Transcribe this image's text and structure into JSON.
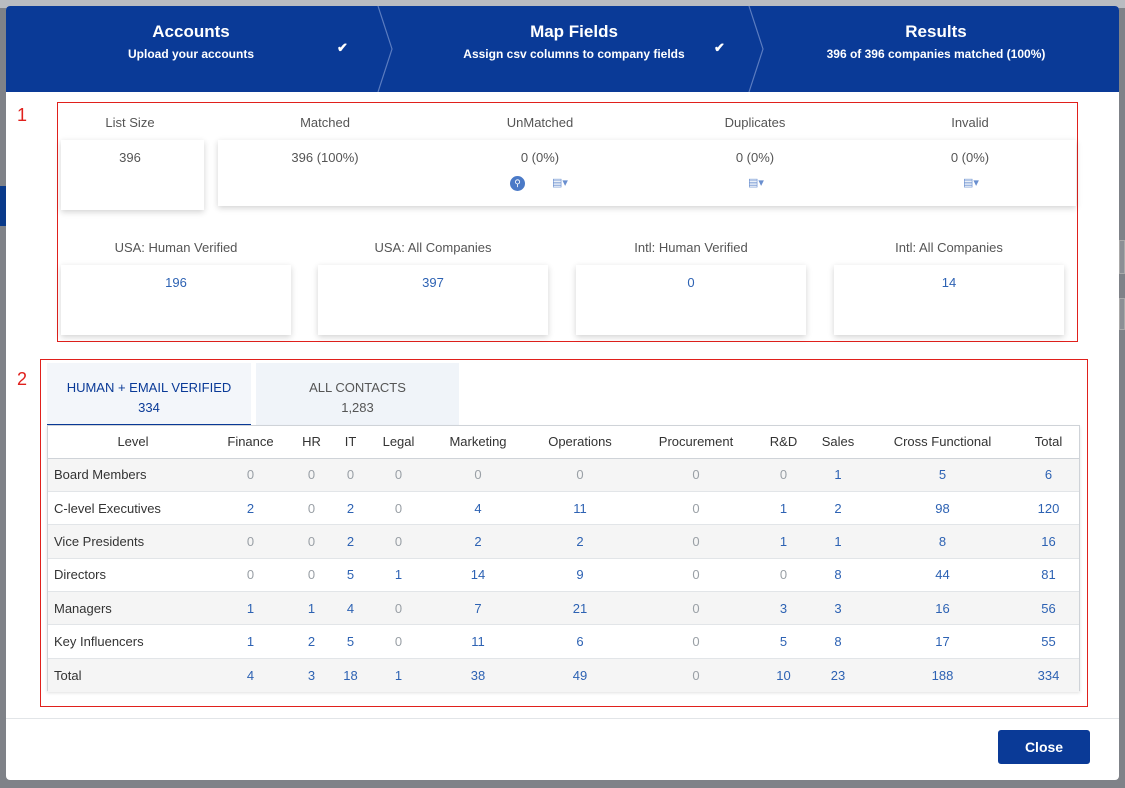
{
  "wizard": {
    "steps": [
      {
        "title": "Accounts",
        "subtitle": "Upload your accounts",
        "done": true
      },
      {
        "title": "Map Fields",
        "subtitle": "Assign csv columns to company fields",
        "done": true
      },
      {
        "title": "Results",
        "subtitle": "396 of 396 companies matched (100%)",
        "done": false
      }
    ],
    "check_icon": "checkmark-icon",
    "colors": {
      "header_bg": "#0a3a97",
      "accent": "#2d62b3",
      "annotation": "#e0201c"
    }
  },
  "section1": {
    "number": "1",
    "summary": [
      {
        "label": "List Size",
        "value": "396"
      },
      {
        "label": "Matched",
        "value": "396 (100%)"
      },
      {
        "label": "UnMatched",
        "value": "0 (0%)"
      },
      {
        "label": "Duplicates",
        "value": "0 (0%)"
      },
      {
        "label": "Invalid",
        "value": "0 (0%)"
      }
    ],
    "counts": [
      {
        "label": "USA: Human Verified",
        "value": "196"
      },
      {
        "label": "USA: All Companies",
        "value": "397"
      },
      {
        "label": "Intl: Human Verified",
        "value": "0"
      },
      {
        "label": "Intl: All Companies",
        "value": "14"
      }
    ]
  },
  "section2": {
    "number": "2",
    "tabs": [
      {
        "label": "HUMAN + EMAIL VERIFIED",
        "count": "334",
        "active": true
      },
      {
        "label": "ALL CONTACTS",
        "count": "1,283",
        "active": false
      }
    ],
    "table": {
      "headers": [
        "Level",
        "Finance",
        "HR",
        "IT",
        "Legal",
        "Marketing",
        "Operations",
        "Procurement",
        "R&D",
        "Sales",
        "Cross Functional",
        "Total"
      ],
      "rows": [
        [
          "Board Members",
          "0",
          "0",
          "0",
          "0",
          "0",
          "0",
          "0",
          "0",
          "1",
          "5",
          "6"
        ],
        [
          "C-level Executives",
          "2",
          "0",
          "2",
          "0",
          "4",
          "11",
          "0",
          "1",
          "2",
          "98",
          "120"
        ],
        [
          "Vice Presidents",
          "0",
          "0",
          "2",
          "0",
          "2",
          "2",
          "0",
          "1",
          "1",
          "8",
          "16"
        ],
        [
          "Directors",
          "0",
          "0",
          "5",
          "1",
          "14",
          "9",
          "0",
          "0",
          "8",
          "44",
          "81"
        ],
        [
          "Managers",
          "1",
          "1",
          "4",
          "0",
          "7",
          "21",
          "0",
          "3",
          "3",
          "16",
          "56"
        ],
        [
          "Key Influencers",
          "1",
          "2",
          "5",
          "0",
          "11",
          "6",
          "0",
          "5",
          "8",
          "17",
          "55"
        ],
        [
          "Total",
          "4",
          "3",
          "18",
          "1",
          "38",
          "49",
          "0",
          "10",
          "23",
          "188",
          "334"
        ]
      ]
    }
  },
  "footer": {
    "close_label": "Close"
  }
}
